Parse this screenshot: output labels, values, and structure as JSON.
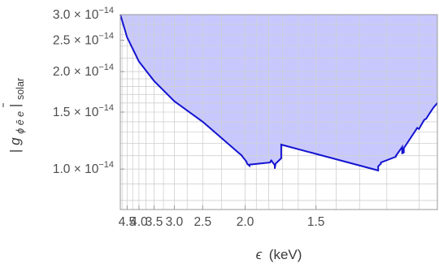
{
  "chart_data": {
    "type": "area",
    "title": "",
    "xlabel": "ϵ (keV)",
    "xlabel_symbol": "ϵ",
    "xlabel_unit": "(keV)",
    "ylabel": "|g_{ϕ ē e}|_solar",
    "ylabel_symbol": "g",
    "ylabel_subscript_top": "ϕ ē e",
    "ylabel_subscript_solar": "solar",
    "x_scale": "reciprocal",
    "y_scale": "log",
    "xlim": [
      4.85,
      1.05
    ],
    "ylim": [
      7.5e-15,
      3e-14
    ],
    "grid": true,
    "x_ticks": [
      {
        "value": 1.5,
        "label": "1.5"
      },
      {
        "value": 2.0,
        "label": "2.0"
      },
      {
        "value": 2.5,
        "label": "2.5"
      },
      {
        "value": 3.0,
        "label": "3.0"
      },
      {
        "value": 3.5,
        "label": "3.5"
      },
      {
        "value": 4.0,
        "label": "4.0"
      },
      {
        "value": 4.5,
        "label": "4.5"
      }
    ],
    "y_ticks": [
      {
        "value": 1e-14,
        "mantissa": "1.0",
        "base": "× 10",
        "exponent": "−14"
      },
      {
        "value": 1.5e-14,
        "mantissa": "1.5",
        "base": "× 10",
        "exponent": "−14"
      },
      {
        "value": 2e-14,
        "mantissa": "2.0",
        "base": "× 10",
        "exponent": "−14"
      },
      {
        "value": 2.5e-14,
        "mantissa": "2.5",
        "base": "× 10",
        "exponent": "−14"
      },
      {
        "value": 3e-14,
        "mantissa": "3.0",
        "base": "× 10",
        "exponent": "−14"
      }
    ],
    "x_minor_grid": [
      1.1,
      1.2,
      1.3,
      1.4,
      1.5,
      1.6,
      1.7,
      1.8,
      1.9,
      2.0,
      2.25,
      2.5,
      2.75,
      3.0,
      3.25,
      3.5,
      3.75,
      4.0,
      4.25,
      4.5,
      4.75
    ],
    "y_minor_grid": [
      8e-15,
      9e-15,
      1e-14,
      1.1e-14,
      1.2e-14,
      1.3e-14,
      1.4e-14,
      1.5e-14,
      1.6e-14,
      1.7e-14,
      1.8e-14,
      1.9e-14,
      2e-14,
      2.2e-14,
      2.4e-14,
      2.6e-14,
      2.8e-14,
      3e-14
    ],
    "series": [
      {
        "color": "#1414d0",
        "fill": "#c8c8ff",
        "x": [
          4.85,
          4.5,
          4.0,
          3.5,
          3.0,
          2.5,
          2.06,
          2.03,
          2.03,
          1.99,
          1.98,
          1.96,
          1.96,
          1.79,
          1.78,
          1.78,
          1.755,
          1.755,
          1.75,
          1.71,
          1.71,
          1.23,
          1.23,
          1.22,
          1.22,
          1.17,
          1.17,
          1.15,
          1.15,
          1.145,
          1.145,
          1.11,
          1.105,
          1.1,
          1.095,
          1.085,
          1.08,
          1.07,
          1.06,
          1.05
        ],
        "y": [
          3e-14,
          2.55e-14,
          2.15e-14,
          1.87e-14,
          1.62e-14,
          1.4e-14,
          1.12e-14,
          1.1e-14,
          1.097e-14,
          1.057e-14,
          1.037e-14,
          1.024e-14,
          1.032e-14,
          1.048e-14,
          1.068e-14,
          1.061e-14,
          1.028e-14,
          1.003e-14,
          1.038e-14,
          1.08e-14,
          1.19e-14,
          9.9e-15,
          1.02e-14,
          1.04e-14,
          1.048e-14,
          1.092e-14,
          1.098e-14,
          1.17e-14,
          1.12e-14,
          1.125e-14,
          1.16e-14,
          1.315e-14,
          1.34e-14,
          1.33e-14,
          1.36e-14,
          1.42e-14,
          1.43e-14,
          1.49e-14,
          1.55e-14,
          1.6e-14
        ]
      }
    ]
  }
}
